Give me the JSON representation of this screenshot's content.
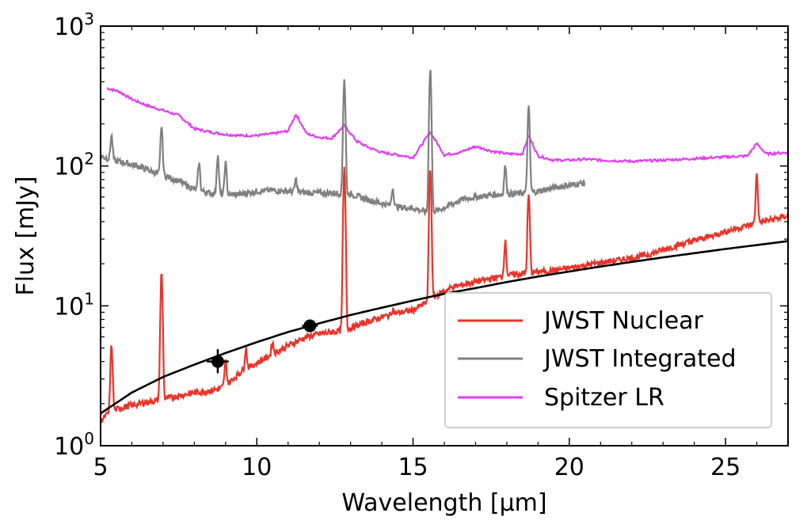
{
  "chart_data": {
    "type": "line",
    "xlabel": "Wavelength [μm]",
    "ylabel": "Flux [mJy]",
    "xlim": [
      5,
      27
    ],
    "ylim": [
      1,
      1000
    ],
    "yscale": "log",
    "grid": false,
    "legend_position": "lower-right",
    "xticks": [
      5,
      10,
      15,
      20,
      25
    ],
    "xtick_labels": [
      "5",
      "10",
      "15",
      "20",
      "25"
    ],
    "yticks": [
      1,
      10,
      100,
      1000
    ],
    "ytick_labels": [
      {
        "base": "10",
        "exp": "0"
      },
      {
        "base": "10",
        "exp": "1"
      },
      {
        "base": "10",
        "exp": "2"
      },
      {
        "base": "10",
        "exp": "3"
      }
    ],
    "series": [
      {
        "name": "JWST Nuclear",
        "color": "#e8342a",
        "x": [
          5.0,
          5.3,
          5.6,
          6.0,
          6.5,
          6.8,
          7.2,
          7.6,
          8.0,
          8.4,
          8.8,
          9.1,
          9.5,
          10.0,
          10.5,
          11.0,
          11.3,
          11.6,
          12.0,
          12.4,
          12.8,
          13.2,
          13.6,
          14.0,
          14.5,
          15.0,
          15.4,
          15.8,
          16.2,
          16.8,
          17.4,
          18.0,
          18.5,
          19.0,
          19.6,
          20.2,
          20.8,
          21.4,
          22.0,
          22.6,
          23.2,
          23.8,
          24.4,
          25.0,
          25.6,
          26.2,
          26.6,
          27.0
        ],
        "y": [
          1.5,
          1.75,
          1.85,
          1.95,
          2.05,
          2.1,
          2.2,
          2.3,
          2.4,
          2.45,
          2.55,
          2.8,
          3.4,
          3.9,
          4.5,
          5.2,
          5.6,
          6.0,
          6.3,
          6.5,
          6.7,
          7.2,
          7.8,
          8.3,
          8.9,
          9.3,
          10.5,
          12.0,
          13.5,
          14.5,
          15.5,
          16.5,
          17.0,
          17.5,
          18.0,
          19.0,
          20.0,
          21.0,
          22.0,
          23.5,
          26.0,
          28.5,
          31.0,
          34.0,
          37.0,
          40.0,
          42.0,
          44.0
        ],
        "peaks": [
          {
            "x": 5.35,
            "y": 5.2
          },
          {
            "x": 6.95,
            "y": 17.0
          },
          {
            "x": 9.0,
            "y": 4.0
          },
          {
            "x": 9.65,
            "y": 5.0
          },
          {
            "x": 10.5,
            "y": 5.5
          },
          {
            "x": 12.8,
            "y": 95.0
          },
          {
            "x": 14.35,
            "y": 9.5
          },
          {
            "x": 15.55,
            "y": 95.0
          },
          {
            "x": 17.95,
            "y": 29.0
          },
          {
            "x": 18.7,
            "y": 62.0
          },
          {
            "x": 26.0,
            "y": 88.0
          }
        ]
      },
      {
        "name": "JWST Integrated",
        "color": "#808080",
        "x": [
          5.0,
          5.4,
          5.8,
          6.2,
          6.6,
          7.0,
          7.5,
          8.0,
          8.5,
          9.0,
          9.5,
          10.0,
          10.5,
          11.0,
          11.5,
          12.0,
          12.5,
          13.0,
          13.5,
          14.0,
          14.5,
          15.0,
          15.4,
          15.8,
          16.2,
          16.6,
          17.0,
          17.5,
          18.0,
          18.5,
          19.0,
          19.5,
          20.0,
          20.5
        ],
        "y": [
          118,
          110,
          105,
          100,
          92,
          86,
          78,
          68,
          64,
          62,
          63,
          66,
          67,
          66,
          65,
          64,
          64,
          63,
          58,
          54,
          51,
          50,
          47,
          48,
          53,
          58,
          60,
          62,
          63,
          64,
          66,
          70,
          73,
          76
        ],
        "peaks": [
          {
            "x": 5.35,
            "y": 165
          },
          {
            "x": 6.95,
            "y": 195
          },
          {
            "x": 8.15,
            "y": 105
          },
          {
            "x": 8.75,
            "y": 120
          },
          {
            "x": 9.0,
            "y": 105
          },
          {
            "x": 11.25,
            "y": 80
          },
          {
            "x": 12.8,
            "y": 420
          },
          {
            "x": 14.35,
            "y": 70
          },
          {
            "x": 15.55,
            "y": 500
          },
          {
            "x": 17.95,
            "y": 100
          },
          {
            "x": 18.7,
            "y": 260
          }
        ]
      },
      {
        "name": "Spitzer LR",
        "color": "#e23ef0",
        "x": [
          5.2,
          5.6,
          6.0,
          6.5,
          7.0,
          7.5,
          8.0,
          8.5,
          9.0,
          9.5,
          10.0,
          10.5,
          11.0,
          11.25,
          11.6,
          12.0,
          12.4,
          12.8,
          13.2,
          13.6,
          14.0,
          14.5,
          15.0,
          15.55,
          16.0,
          16.5,
          17.0,
          17.5,
          18.0,
          18.5,
          18.7,
          19.0,
          19.5,
          20.0,
          20.5,
          21.0,
          22.0,
          23.0,
          24.0,
          25.0,
          25.7,
          26.0,
          26.3,
          27.0
        ],
        "y": [
          360,
          340,
          300,
          270,
          250,
          230,
          185,
          175,
          168,
          165,
          165,
          170,
          178,
          235,
          170,
          160,
          158,
          195,
          150,
          135,
          125,
          120,
          115,
          175,
          120,
          125,
          138,
          128,
          122,
          122,
          165,
          118,
          110,
          110,
          112,
          110,
          108,
          110,
          113,
          116,
          118,
          145,
          122,
          125
        ]
      }
    ],
    "photometry": [
      {
        "x": 8.75,
        "y": 4.0,
        "xerr": 0.35,
        "yerr_low": 0.7,
        "yerr_high": 0.9
      },
      {
        "x": 11.7,
        "y": 7.2,
        "xerr": 0.25,
        "yerr_low": 0.6,
        "yerr_high": 0.7
      }
    ],
    "model_curve": {
      "color": "#000000",
      "x": [
        5.0,
        6.0,
        7.0,
        8.0,
        9.0,
        10.0,
        11.0,
        12.0,
        13.0,
        14.0,
        15.0,
        16.0,
        17.0,
        18.0,
        19.0,
        20.0,
        21.0,
        22.0,
        23.0,
        24.0,
        25.0,
        26.0,
        27.0
      ],
      "y": [
        1.7,
        2.4,
        3.1,
        3.8,
        4.6,
        5.5,
        6.5,
        7.5,
        8.6,
        9.7,
        10.9,
        12.2,
        13.4,
        14.8,
        16.2,
        17.6,
        19.1,
        20.6,
        22.2,
        23.8,
        25.5,
        27.2,
        29.0
      ]
    }
  }
}
